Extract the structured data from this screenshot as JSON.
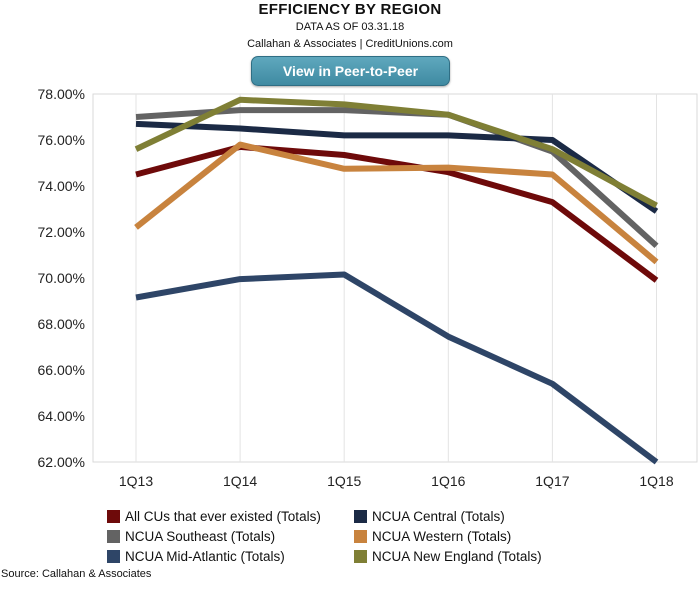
{
  "header": {
    "title": "EFFICIENCY BY REGION",
    "data_as_of": "DATA AS OF 03.31.18",
    "attribution": "Callahan & Associates | CreditUnions.com",
    "button_label": "View in Peer-to-Peer"
  },
  "footer": {
    "source": "Source: Callahan & Associates"
  },
  "chart_data": {
    "type": "line",
    "title": "EFFICIENCY BY REGION",
    "xlabel": "",
    "ylabel": "",
    "categories": [
      "1Q13",
      "1Q14",
      "1Q15",
      "1Q16",
      "1Q17",
      "1Q18"
    ],
    "ylim": [
      62,
      78
    ],
    "yticks": [
      62,
      64,
      66,
      68,
      70,
      72,
      74,
      76,
      78
    ],
    "ytick_labels": [
      "62.00%",
      "64.00%",
      "66.00%",
      "68.00%",
      "70.00%",
      "72.00%",
      "74.00%",
      "76.00%",
      "78.00%"
    ],
    "grid": "vertical",
    "legend_position": "bottom",
    "series": [
      {
        "name": "NCUA Southeast (Totals)",
        "color": "#636363",
        "values": [
          77.0,
          77.3,
          77.3,
          77.1,
          75.5,
          71.4
        ]
      },
      {
        "name": "NCUA Central (Totals)",
        "color": "#1b2a45",
        "values": [
          76.7,
          76.5,
          76.2,
          76.2,
          76.0,
          72.9
        ]
      },
      {
        "name": "All CUs that ever existed (Totals)",
        "color": "#6e0a0a",
        "values": [
          74.5,
          75.7,
          75.35,
          74.6,
          73.3,
          69.9
        ]
      },
      {
        "name": "NCUA Western (Totals)",
        "color": "#c8833e",
        "values": [
          72.2,
          75.8,
          74.75,
          74.8,
          74.5,
          70.7
        ]
      },
      {
        "name": "NCUA Mid-Atlantic (Totals)",
        "color": "#2e4567",
        "values": [
          69.15,
          69.95,
          70.15,
          67.45,
          65.4,
          62.0
        ]
      },
      {
        "name": "NCUA New England (Totals)",
        "color": "#7f7f35",
        "values": [
          75.6,
          77.75,
          77.55,
          77.1,
          75.6,
          73.15
        ]
      }
    ]
  },
  "legend": [
    {
      "label": "All CUs that ever existed (Totals)",
      "color": "#6e0a0a"
    },
    {
      "label": "NCUA Central (Totals)",
      "color": "#1b2a45"
    },
    {
      "label": "NCUA Southeast (Totals)",
      "color": "#636363"
    },
    {
      "label": "NCUA Western (Totals)",
      "color": "#c8833e"
    },
    {
      "label": "NCUA Mid-Atlantic (Totals)",
      "color": "#2e4567"
    },
    {
      "label": "NCUA New England (Totals)",
      "color": "#7f7f35"
    }
  ]
}
